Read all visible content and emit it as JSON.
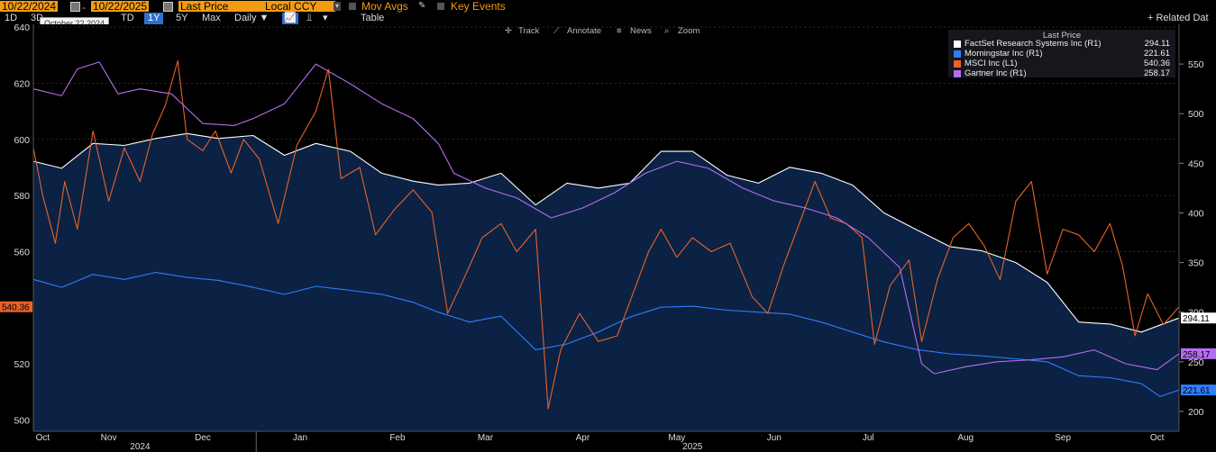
{
  "toolbar": {
    "start_date": "10/22/2024",
    "separator": "-",
    "end_date": "10/22/2025",
    "field": "Last Price",
    "currency": "Local CCY",
    "mov_avgs": "Mov Avgs",
    "key_events": "Key Events"
  },
  "range_buttons": {
    "b1d": "1D",
    "b3d": "3D",
    "bytd": "TD",
    "b1y": "1Y",
    "b5y": "5Y",
    "bmax": "Max",
    "period": "Daily ▼",
    "table": "Table",
    "related": "+ Related Dat"
  },
  "tooltip": "October 22 2024",
  "tools": {
    "track": "Track",
    "annotate": "Annotate",
    "news": "News",
    "zoom": "Zoom"
  },
  "legend": {
    "title": "Last Price",
    "items": [
      {
        "name": "FactSet Research Systems Inc  (R1)",
        "value": "294.11",
        "color": "#ffffff"
      },
      {
        "name": "Morningstar Inc  (R1)",
        "value": "221.61",
        "color": "#2f7dff"
      },
      {
        "name": "MSCI Inc  (L1)",
        "value": "540.36",
        "color": "#e8622a"
      },
      {
        "name": "Gartner Inc  (R1)",
        "value": "258.17",
        "color": "#b56ef0"
      }
    ]
  },
  "axis_tags": {
    "left": "540.36",
    "factset": "294.11",
    "gartner": "258.17",
    "morningstar": "221.61"
  },
  "chart_data": {
    "type": "line",
    "x_range": [
      "2024-10-22",
      "2025-10-22"
    ],
    "left_axis": {
      "ticks": [
        500,
        520,
        540,
        560,
        580,
        600,
        620,
        640
      ],
      "ylim": [
        496,
        641
      ]
    },
    "right_axis": {
      "ticks": [
        200,
        250,
        300,
        350,
        400,
        450,
        500,
        550
      ],
      "ylim": [
        180,
        590
      ]
    },
    "x_month_labels": [
      "Oct",
      "Nov",
      "Dec",
      "Jan",
      "Feb",
      "Mar",
      "Apr",
      "May",
      "Jun",
      "Jul",
      "Aug",
      "Sep",
      "Oct"
    ],
    "x_month_dates": [
      "2024-10-25",
      "2024-11-15",
      "2024-12-15",
      "2025-01-15",
      "2025-02-15",
      "2025-03-15",
      "2025-04-15",
      "2025-05-15",
      "2025-06-15",
      "2025-07-15",
      "2025-08-15",
      "2025-09-15",
      "2025-10-15"
    ],
    "x_year_labels": [
      {
        "label": "2024",
        "date": "2024-11-25"
      },
      {
        "label": "2025",
        "date": "2025-05-20"
      }
    ],
    "x_year_divider": "2025-01-01",
    "series": [
      {
        "name": "FactSet Research Systems Inc  (R1)",
        "axis": "right",
        "color": "#ffffff",
        "fill": "#0b2244",
        "points": [
          [
            "2024-10-22",
            452
          ],
          [
            "2024-10-31",
            445
          ],
          [
            "2024-11-10",
            470
          ],
          [
            "2024-11-20",
            468
          ],
          [
            "2024-11-30",
            475
          ],
          [
            "2024-12-10",
            480
          ],
          [
            "2024-12-20",
            475
          ],
          [
            "2024-12-31",
            478
          ],
          [
            "2025-01-10",
            458
          ],
          [
            "2025-01-20",
            470
          ],
          [
            "2025-01-31",
            462
          ],
          [
            "2025-02-10",
            440
          ],
          [
            "2025-02-20",
            432
          ],
          [
            "2025-02-28",
            428
          ],
          [
            "2025-03-10",
            430
          ],
          [
            "2025-03-20",
            440
          ],
          [
            "2025-03-31",
            408
          ],
          [
            "2025-04-10",
            430
          ],
          [
            "2025-04-20",
            425
          ],
          [
            "2025-04-30",
            430
          ],
          [
            "2025-05-10",
            462
          ],
          [
            "2025-05-20",
            462
          ],
          [
            "2025-05-31",
            438
          ],
          [
            "2025-06-10",
            430
          ],
          [
            "2025-06-20",
            446
          ],
          [
            "2025-06-30",
            440
          ],
          [
            "2025-07-10",
            428
          ],
          [
            "2025-07-20",
            400
          ],
          [
            "2025-07-31",
            382
          ],
          [
            "2025-08-10",
            366
          ],
          [
            "2025-08-20",
            362
          ],
          [
            "2025-08-31",
            350
          ],
          [
            "2025-09-10",
            330
          ],
          [
            "2025-09-20",
            290
          ],
          [
            "2025-09-30",
            288
          ],
          [
            "2025-10-10",
            280
          ],
          [
            "2025-10-22",
            294.11
          ]
        ]
      },
      {
        "name": "Morningstar Inc  (R1)",
        "axis": "right",
        "color": "#2f7dff",
        "points": [
          [
            "2024-10-22",
            333
          ],
          [
            "2024-10-31",
            325
          ],
          [
            "2024-11-10",
            338
          ],
          [
            "2024-11-20",
            333
          ],
          [
            "2024-11-30",
            340
          ],
          [
            "2024-12-10",
            335
          ],
          [
            "2024-12-20",
            332
          ],
          [
            "2024-12-31",
            325
          ],
          [
            "2025-01-10",
            318
          ],
          [
            "2025-01-20",
            326
          ],
          [
            "2025-01-31",
            322
          ],
          [
            "2025-02-10",
            318
          ],
          [
            "2025-02-20",
            310
          ],
          [
            "2025-02-28",
            300
          ],
          [
            "2025-03-10",
            290
          ],
          [
            "2025-03-20",
            296
          ],
          [
            "2025-03-31",
            262
          ],
          [
            "2025-04-10",
            268
          ],
          [
            "2025-04-20",
            280
          ],
          [
            "2025-04-30",
            295
          ],
          [
            "2025-05-10",
            305
          ],
          [
            "2025-05-20",
            306
          ],
          [
            "2025-05-31",
            302
          ],
          [
            "2025-06-10",
            300
          ],
          [
            "2025-06-20",
            298
          ],
          [
            "2025-06-30",
            290
          ],
          [
            "2025-07-10",
            280
          ],
          [
            "2025-07-20",
            270
          ],
          [
            "2025-07-31",
            262
          ],
          [
            "2025-08-10",
            258
          ],
          [
            "2025-08-20",
            256
          ],
          [
            "2025-08-31",
            253
          ],
          [
            "2025-09-10",
            250
          ],
          [
            "2025-09-20",
            236
          ],
          [
            "2025-09-30",
            234
          ],
          [
            "2025-10-10",
            228
          ],
          [
            "2025-10-16",
            215
          ],
          [
            "2025-10-22",
            221.61
          ]
        ]
      },
      {
        "name": "MSCI Inc  (L1)",
        "axis": "left",
        "color": "#e8622a",
        "points": [
          [
            "2024-10-22",
            597
          ],
          [
            "2024-10-25",
            580
          ],
          [
            "2024-10-29",
            563
          ],
          [
            "2024-11-01",
            585
          ],
          [
            "2024-11-05",
            568
          ],
          [
            "2024-11-10",
            603
          ],
          [
            "2024-11-15",
            578
          ],
          [
            "2024-11-20",
            597
          ],
          [
            "2024-11-25",
            585
          ],
          [
            "2024-11-29",
            602
          ],
          [
            "2024-12-03",
            612
          ],
          [
            "2024-12-07",
            628
          ],
          [
            "2024-12-10",
            600
          ],
          [
            "2024-12-15",
            596
          ],
          [
            "2024-12-19",
            603
          ],
          [
            "2024-12-24",
            588
          ],
          [
            "2024-12-28",
            600
          ],
          [
            "2025-01-02",
            593
          ],
          [
            "2025-01-08",
            570
          ],
          [
            "2025-01-14",
            598
          ],
          [
            "2025-01-20",
            610
          ],
          [
            "2025-01-24",
            625
          ],
          [
            "2025-01-28",
            586
          ],
          [
            "2025-02-03",
            590
          ],
          [
            "2025-02-08",
            566
          ],
          [
            "2025-02-14",
            575
          ],
          [
            "2025-02-20",
            582
          ],
          [
            "2025-02-26",
            574
          ],
          [
            "2025-03-03",
            538
          ],
          [
            "2025-03-08",
            550
          ],
          [
            "2025-03-14",
            565
          ],
          [
            "2025-03-20",
            570
          ],
          [
            "2025-03-25",
            560
          ],
          [
            "2025-03-31",
            568
          ],
          [
            "2025-04-04",
            504
          ],
          [
            "2025-04-08",
            525
          ],
          [
            "2025-04-14",
            538
          ],
          [
            "2025-04-20",
            528
          ],
          [
            "2025-04-26",
            530
          ],
          [
            "2025-05-01",
            545
          ],
          [
            "2025-05-06",
            560
          ],
          [
            "2025-05-10",
            568
          ],
          [
            "2025-05-15",
            558
          ],
          [
            "2025-05-20",
            565
          ],
          [
            "2025-05-26",
            560
          ],
          [
            "2025-06-01",
            563
          ],
          [
            "2025-06-08",
            544
          ],
          [
            "2025-06-13",
            538
          ],
          [
            "2025-06-18",
            555
          ],
          [
            "2025-06-23",
            570
          ],
          [
            "2025-06-28",
            585
          ],
          [
            "2025-07-03",
            572
          ],
          [
            "2025-07-08",
            570
          ],
          [
            "2025-07-13",
            565
          ],
          [
            "2025-07-17",
            527
          ],
          [
            "2025-07-22",
            548
          ],
          [
            "2025-07-28",
            557
          ],
          [
            "2025-08-01",
            528
          ],
          [
            "2025-08-06",
            550
          ],
          [
            "2025-08-11",
            565
          ],
          [
            "2025-08-16",
            570
          ],
          [
            "2025-08-21",
            562
          ],
          [
            "2025-08-26",
            550
          ],
          [
            "2025-08-31",
            578
          ],
          [
            "2025-09-05",
            585
          ],
          [
            "2025-09-10",
            552
          ],
          [
            "2025-09-15",
            568
          ],
          [
            "2025-09-20",
            566
          ],
          [
            "2025-09-25",
            560
          ],
          [
            "2025-09-30",
            570
          ],
          [
            "2025-10-04",
            555
          ],
          [
            "2025-10-08",
            530
          ],
          [
            "2025-10-12",
            545
          ],
          [
            "2025-10-17",
            534
          ],
          [
            "2025-10-22",
            540.36
          ]
        ]
      },
      {
        "name": "Gartner Inc  (R1)",
        "axis": "right",
        "color": "#b56ef0",
        "points": [
          [
            "2024-10-22",
            525
          ],
          [
            "2024-10-31",
            518
          ],
          [
            "2024-11-05",
            545
          ],
          [
            "2024-11-12",
            552
          ],
          [
            "2024-11-18",
            520
          ],
          [
            "2024-11-25",
            525
          ],
          [
            "2024-12-05",
            520
          ],
          [
            "2024-12-15",
            490
          ],
          [
            "2024-12-25",
            488
          ],
          [
            "2024-12-31",
            495
          ],
          [
            "2025-01-10",
            510
          ],
          [
            "2025-01-20",
            550
          ],
          [
            "2025-01-31",
            530
          ],
          [
            "2025-02-10",
            510
          ],
          [
            "2025-02-20",
            495
          ],
          [
            "2025-02-28",
            470
          ],
          [
            "2025-03-05",
            440
          ],
          [
            "2025-03-15",
            425
          ],
          [
            "2025-03-25",
            415
          ],
          [
            "2025-04-05",
            395
          ],
          [
            "2025-04-15",
            405
          ],
          [
            "2025-04-25",
            420
          ],
          [
            "2025-05-05",
            440
          ],
          [
            "2025-05-15",
            452
          ],
          [
            "2025-05-25",
            445
          ],
          [
            "2025-06-05",
            425
          ],
          [
            "2025-06-15",
            412
          ],
          [
            "2025-06-25",
            405
          ],
          [
            "2025-07-05",
            395
          ],
          [
            "2025-07-15",
            375
          ],
          [
            "2025-07-25",
            345
          ],
          [
            "2025-08-01",
            248
          ],
          [
            "2025-08-05",
            238
          ],
          [
            "2025-08-15",
            245
          ],
          [
            "2025-08-25",
            250
          ],
          [
            "2025-09-05",
            252
          ],
          [
            "2025-09-15",
            255
          ],
          [
            "2025-09-25",
            262
          ],
          [
            "2025-10-05",
            248
          ],
          [
            "2025-10-15",
            242
          ],
          [
            "2025-10-22",
            258.17
          ]
        ]
      }
    ]
  }
}
